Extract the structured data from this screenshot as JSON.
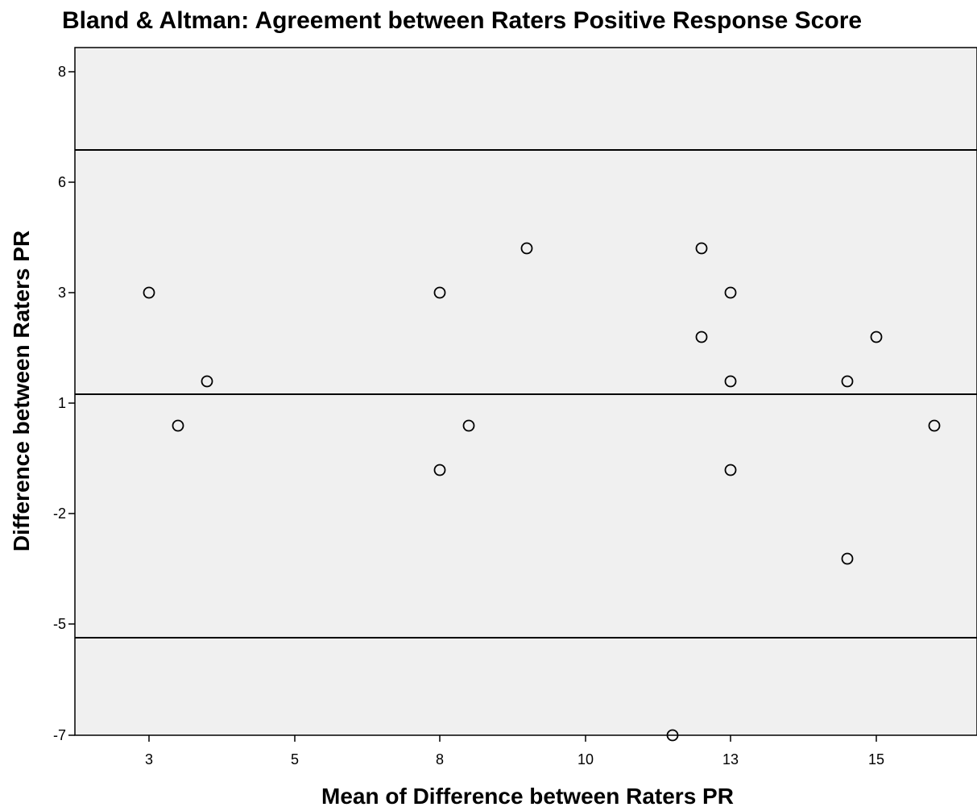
{
  "chart_data": {
    "type": "scatter",
    "title": "Bland & Altman: Agreement between Raters Positive Response Score",
    "xlabel": "Mean of Difference between Raters PR",
    "ylabel": "Difference between Raters PR",
    "x_ticks": [
      "3",
      "5",
      "8",
      "10",
      "13",
      "15"
    ],
    "y_ticks": [
      "8",
      "6",
      "3",
      "1",
      "-2",
      "-5",
      "-7"
    ],
    "grid": false,
    "reference_lines": {
      "upper_limit": 6.9,
      "mean_difference": 1.3,
      "lower_limit": -5.3
    },
    "points": [
      {
        "x": 3.0,
        "y": 3.0
      },
      {
        "x": 3.5,
        "y": 0.6
      },
      {
        "x": 4.0,
        "y": 1.8
      },
      {
        "x": 8.0,
        "y": 3.0
      },
      {
        "x": 8.0,
        "y": -0.6
      },
      {
        "x": 8.5,
        "y": 0.6
      },
      {
        "x": 9.5,
        "y": 4.2
      },
      {
        "x": 12.0,
        "y": -7.0
      },
      {
        "x": 13.0,
        "y": 4.2
      },
      {
        "x": 13.0,
        "y": 2.4
      },
      {
        "x": 13.5,
        "y": 3.0
      },
      {
        "x": 13.5,
        "y": 1.8
      },
      {
        "x": 13.5,
        "y": -0.6
      },
      {
        "x": 15.5,
        "y": 1.8
      },
      {
        "x": 15.5,
        "y": -3.0
      },
      {
        "x": 16.0,
        "y": 2.4
      },
      {
        "x": 17.0,
        "y": 0.6
      }
    ],
    "colors": {
      "plot_background": "#f0f0f0",
      "marker_stroke": "#000000",
      "line": "#000000"
    }
  }
}
